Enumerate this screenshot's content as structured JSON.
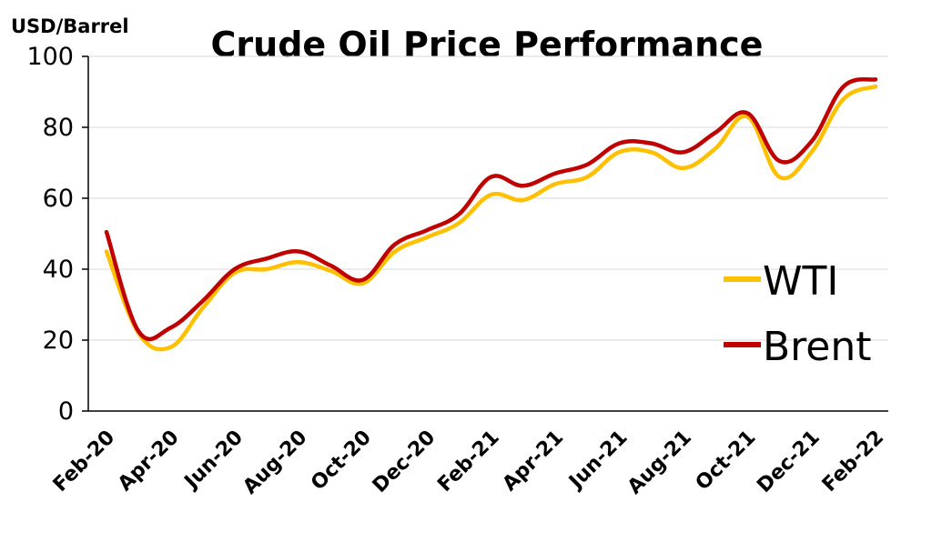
{
  "chart_data": {
    "type": "line",
    "title": "Crude Oil Price Performance",
    "ylabel": "USD/Barrel",
    "xlabel": "",
    "ylim": [
      0,
      100
    ],
    "yticks": [
      0,
      20,
      40,
      60,
      80,
      100
    ],
    "grid": true,
    "legend_position": "right",
    "x": [
      "Feb-20",
      "Mar-20",
      "Apr-20",
      "May-20",
      "Jun-20",
      "Jul-20",
      "Aug-20",
      "Sep-20",
      "Oct-20",
      "Nov-20",
      "Dec-20",
      "Jan-21",
      "Feb-21",
      "Mar-21",
      "Apr-21",
      "May-21",
      "Jun-21",
      "Jul-21",
      "Aug-21",
      "Sep-21",
      "Oct-21",
      "Nov-21",
      "Dec-21",
      "Jan-22",
      "Feb-22"
    ],
    "x_tick_labels": [
      "Feb-20",
      "Apr-20",
      "Jun-20",
      "Aug-20",
      "Oct-20",
      "Dec-20",
      "Feb-21",
      "Apr-21",
      "Jun-21",
      "Aug-21",
      "Oct-21",
      "Dec-21",
      "Feb-22"
    ],
    "series": [
      {
        "name": "WTI",
        "color": "#FFC000",
        "values": [
          45,
          22,
          18,
          29,
          39,
          40,
          42,
          39.5,
          36,
          45,
          49,
          53,
          61,
          59.5,
          64,
          66,
          73,
          73,
          68.5,
          74,
          83,
          66,
          73,
          88,
          91.5
        ]
      },
      {
        "name": "Brent",
        "color": "#C00000",
        "values": [
          50.5,
          22.5,
          23.5,
          31,
          40,
          43,
          45,
          41,
          37,
          47,
          51,
          55.5,
          66,
          63.5,
          67,
          69.5,
          75.5,
          75.5,
          73,
          78.5,
          84,
          70.5,
          76,
          91.5,
          93.5
        ]
      }
    ]
  }
}
